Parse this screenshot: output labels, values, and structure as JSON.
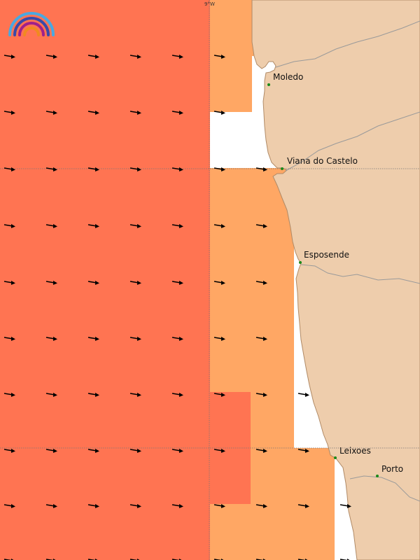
{
  "map": {
    "longitude_tick_label": "9°W",
    "colors": {
      "land": "#eecdac",
      "coast_line": "#a07a5a",
      "sea_high": "#ff7452",
      "sea_mid": "#ffa764",
      "sea_nodata": "#ffffff",
      "arrow": "#000000",
      "city_dot": "#1a8a1a",
      "grid": "#777777"
    },
    "wind_direction": "east",
    "cities": [
      {
        "id": "moledo",
        "name": "Moledo"
      },
      {
        "id": "viana",
        "name": "Viana do Castelo"
      },
      {
        "id": "esposende",
        "name": "Esposende"
      },
      {
        "id": "leixoes",
        "name": "Leixoes"
      },
      {
        "id": "porto",
        "name": "Porto"
      }
    ]
  },
  "logo": {
    "name": "rainbow-logo-icon"
  }
}
